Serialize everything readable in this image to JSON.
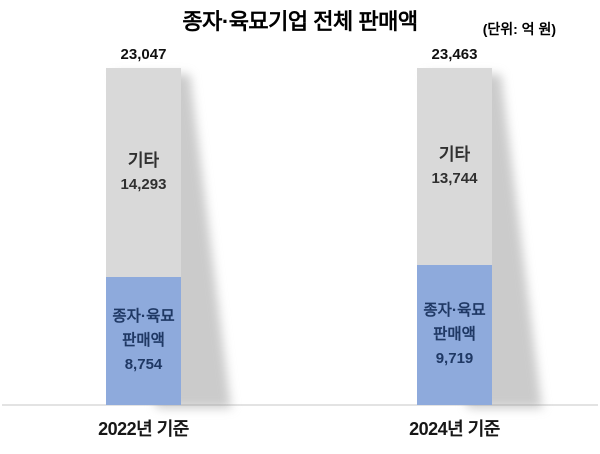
{
  "header": {
    "title": "종자·육묘기업 전체 판매액",
    "unit_label": "(단위: 억 원)"
  },
  "chart_data": {
    "type": "bar",
    "stacked": true,
    "title": "종자·육묘기업 전체 판매액",
    "unit": "억 원",
    "categories": [
      "2022년 기준",
      "2024년 기준"
    ],
    "series": [
      {
        "name": "종자·육묘 판매액",
        "label_lines": [
          "종자·육묘",
          "판매액"
        ],
        "values": [
          8754,
          9719
        ],
        "color": "#8eaadc"
      },
      {
        "name": "기타",
        "values": [
          14293,
          13744
        ],
        "color": "#d9d9d9"
      }
    ],
    "totals": [
      23047,
      23463
    ],
    "ylim": [
      0,
      23463
    ],
    "grid": false,
    "legend_position": "none",
    "bar_order_bottom_to_top": [
      "종자·육묘 판매액",
      "기타"
    ]
  },
  "colors": {
    "background": "#ffffff",
    "axis_line": "#e3e3e3",
    "segment_other": "#d9d9d9",
    "segment_seed": "#8eaadc",
    "text_seed": "#1f3864",
    "text_other": "#303030",
    "text_black": "#000000"
  }
}
